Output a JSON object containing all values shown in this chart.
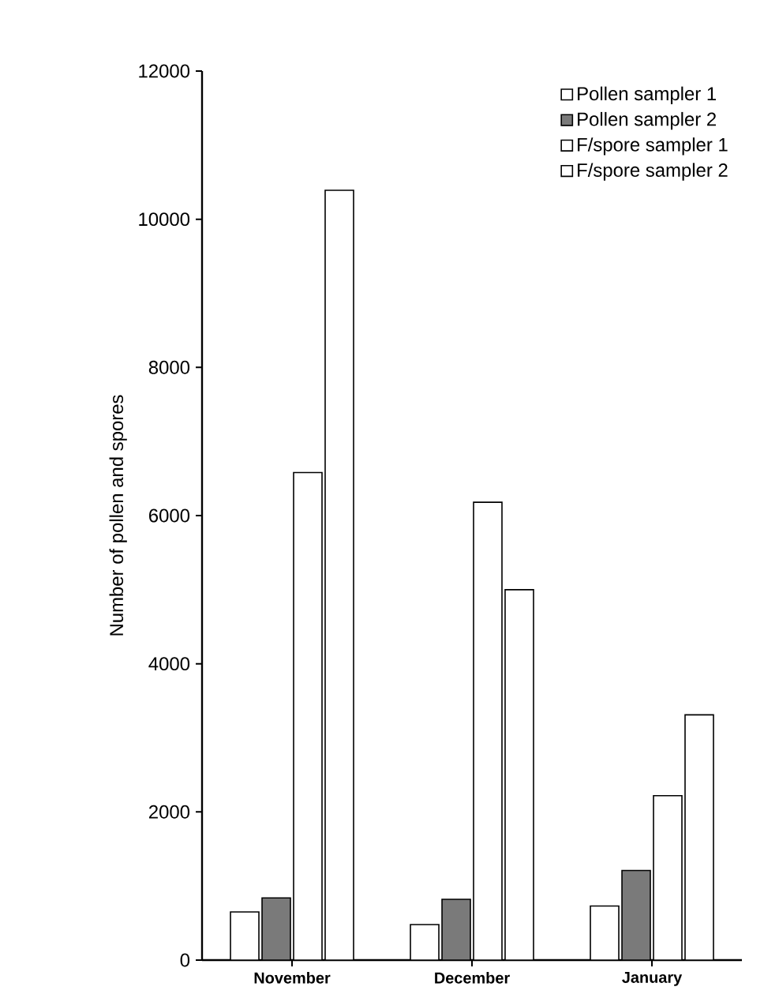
{
  "chart_data": {
    "type": "bar",
    "ylabel": "Number of pollen and spores",
    "categories": [
      "November",
      "December",
      "January"
    ],
    "series": [
      {
        "name": "Pollen sampler 1",
        "color": "#ffffff",
        "values": [
          650,
          480,
          730
        ]
      },
      {
        "name": "Pollen sampler 2",
        "color": "#7a7a7a",
        "values": [
          840,
          820,
          1210
        ]
      },
      {
        "name": "F/spore sampler 1",
        "color": "#ffffff",
        "values": [
          6580,
          6180,
          2220
        ]
      },
      {
        "name": "F/spore sampler 2",
        "color": "#ffffff",
        "values": [
          10390,
          5000,
          3310
        ]
      }
    ],
    "ylim": [
      0,
      12000
    ],
    "yticks": [
      0,
      2000,
      4000,
      6000,
      8000,
      10000,
      12000
    ],
    "grid": false,
    "legend": "top right"
  }
}
